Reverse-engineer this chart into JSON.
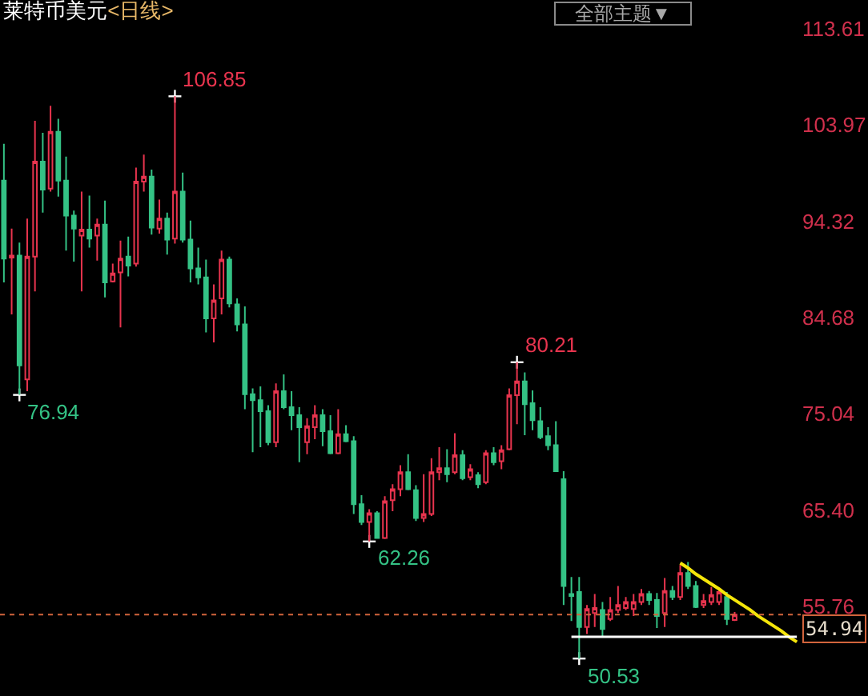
{
  "chart_data": {
    "type": "candlestick",
    "title": "莱特币美元",
    "subtitle": "<日线>",
    "categories": [
      null,
      null,
      null,
      null,
      null,
      null,
      null,
      null,
      null,
      null,
      null,
      null,
      null,
      null,
      null,
      null,
      null,
      null,
      null,
      null,
      null,
      null,
      null,
      null,
      null,
      null,
      null,
      null,
      null,
      null,
      null,
      null,
      null,
      null,
      null,
      null,
      null,
      null,
      null,
      null,
      null,
      null,
      null,
      null,
      null,
      null,
      null,
      null,
      null,
      null,
      null,
      null,
      null,
      null,
      null,
      null,
      null,
      null,
      null,
      null,
      null,
      null,
      null,
      null,
      null,
      null,
      null,
      null,
      null,
      null,
      null,
      null,
      null,
      null,
      null,
      null,
      null,
      null,
      null,
      null,
      null,
      null,
      null,
      null,
      null,
      null,
      null,
      null,
      null,
      null,
      null,
      null,
      null,
      null,
      null,
      null,
      null,
      null,
      null,
      null,
      null,
      null,
      null
    ],
    "ohlc": [
      [
        98.4,
        102.1,
        88.2,
        90.6
      ],
      [
        90.7,
        93.6,
        85.0,
        90.9
      ],
      [
        90.9,
        92.2,
        76.94,
        79.9
      ],
      [
        78.5,
        94.6,
        77.3,
        90.8
      ],
      [
        90.8,
        104.4,
        87.3,
        100.3
      ],
      [
        100.3,
        103.2,
        95.2,
        97.5
      ],
      [
        97.6,
        105.9,
        97.3,
        103.3
      ],
      [
        103.3,
        104.6,
        96.8,
        98.4
      ],
      [
        98.4,
        100.8,
        91.4,
        94.9
      ],
      [
        94.9,
        95.4,
        90.3,
        93.6
      ],
      [
        92.9,
        97.3,
        87.3,
        93.5
      ],
      [
        93.5,
        96.9,
        91.7,
        92.6
      ],
      [
        92.9,
        94.6,
        90.4,
        94.0
      ],
      [
        94.0,
        96.4,
        86.7,
        88.2
      ],
      [
        88.3,
        90.1,
        88.2,
        89.1
      ],
      [
        89.2,
        92.4,
        83.7,
        90.6
      ],
      [
        90.8,
        92.8,
        88.8,
        89.9
      ],
      [
        90.1,
        99.7,
        89.8,
        98.3
      ],
      [
        98.3,
        101.0,
        97.3,
        98.8
      ],
      [
        98.8,
        99.5,
        93.0,
        93.7
      ],
      [
        93.6,
        96.5,
        93.1,
        94.6
      ],
      [
        94.6,
        95.2,
        91.0,
        92.5
      ],
      [
        92.6,
        106.85,
        92.1,
        97.3
      ],
      [
        97.3,
        99.2,
        92.2,
        92.5
      ],
      [
        92.5,
        94.4,
        88.2,
        89.6
      ],
      [
        89.6,
        91.7,
        88.0,
        88.7
      ],
      [
        88.7,
        90.5,
        83.2,
        84.6
      ],
      [
        84.6,
        88.0,
        82.2,
        86.4
      ],
      [
        86.6,
        91.4,
        85.0,
        90.5
      ],
      [
        90.5,
        90.8,
        85.7,
        86.1
      ],
      [
        86.0,
        86.6,
        83.3,
        84.0
      ],
      [
        84.0,
        85.8,
        75.5,
        77.0
      ],
      [
        77.0,
        77.6,
        71.2,
        76.4
      ],
      [
        76.4,
        77.8,
        71.7,
        75.3
      ],
      [
        75.3,
        75.9,
        71.9,
        72.2
      ],
      [
        72.2,
        78.1,
        71.7,
        77.3
      ],
      [
        77.3,
        79.0,
        75.5,
        75.7
      ],
      [
        75.7,
        77.3,
        73.4,
        74.9
      ],
      [
        74.9,
        75.7,
        70.2,
        73.7
      ],
      [
        72.2,
        74.6,
        71.0,
        73.8
      ],
      [
        73.7,
        75.9,
        72.5,
        74.9
      ],
      [
        74.9,
        75.5,
        71.8,
        73.3
      ],
      [
        73.3,
        74.9,
        71.0,
        71.1
      ],
      [
        71.1,
        75.5,
        71.0,
        73.0
      ],
      [
        73.0,
        73.9,
        72.2,
        72.3
      ],
      [
        72.3,
        72.8,
        65.0,
        66.0
      ],
      [
        66.0,
        66.9,
        63.9,
        64.2
      ],
      [
        64.2,
        65.5,
        62.26,
        65.1
      ],
      [
        65.1,
        65.3,
        62.6,
        62.6
      ],
      [
        62.6,
        66.8,
        62.5,
        66.3
      ],
      [
        66.4,
        68.0,
        65.3,
        67.5
      ],
      [
        67.5,
        69.9,
        66.8,
        69.2
      ],
      [
        69.2,
        71.0,
        67.4,
        67.5
      ],
      [
        67.4,
        67.9,
        64.3,
        64.6
      ],
      [
        64.6,
        69.0,
        64.2,
        65.0
      ],
      [
        65.0,
        70.6,
        64.8,
        69.2
      ],
      [
        69.2,
        71.7,
        68.4,
        69.6
      ],
      [
        69.6,
        71.5,
        68.2,
        69.0
      ],
      [
        69.2,
        73.1,
        69.0,
        70.9
      ],
      [
        70.9,
        71.4,
        68.4,
        68.6
      ],
      [
        68.7,
        70.0,
        68.4,
        69.5
      ],
      [
        68.9,
        69.2,
        67.6,
        68.0
      ],
      [
        68.2,
        71.4,
        68.0,
        71.1
      ],
      [
        71.1,
        71.7,
        69.9,
        70.2
      ],
      [
        70.3,
        71.9,
        69.5,
        71.4
      ],
      [
        71.5,
        77.6,
        71.4,
        76.9
      ],
      [
        76.9,
        80.21,
        74.0,
        78.3
      ],
      [
        78.3,
        79.2,
        72.9,
        76.0
      ],
      [
        76.1,
        77.4,
        73.4,
        74.4
      ],
      [
        74.3,
        75.7,
        72.5,
        72.7
      ],
      [
        72.8,
        73.7,
        71.4,
        71.9
      ],
      [
        71.9,
        74.3,
        69.3,
        69.3
      ],
      [
        68.5,
        69.3,
        55.9,
        57.8
      ],
      [
        57.0,
        58.7,
        54.3,
        56.8
      ],
      [
        57.2,
        58.7,
        50.53,
        53.7
      ],
      [
        53.7,
        55.9,
        53.0,
        55.5
      ],
      [
        55.1,
        57.0,
        53.7,
        55.6
      ],
      [
        55.4,
        56.2,
        52.7,
        53.5
      ],
      [
        54.5,
        56.7,
        54.3,
        55.4
      ],
      [
        55.4,
        57.8,
        55.1,
        55.9
      ],
      [
        55.6,
        56.7,
        55.4,
        56.2
      ],
      [
        55.5,
        57.0,
        54.8,
        56.2
      ],
      [
        56.2,
        57.5,
        55.9,
        57.0
      ],
      [
        57.0,
        57.3,
        55.9,
        56.4
      ],
      [
        56.4,
        57.1,
        53.6,
        54.8
      ],
      [
        55.1,
        58.6,
        53.7,
        57.3
      ],
      [
        57.3,
        57.8,
        56.4,
        56.7
      ],
      [
        56.7,
        59.9,
        56.4,
        59.1
      ],
      [
        59.1,
        60.2,
        57.5,
        57.8
      ],
      [
        57.8,
        58.3,
        55.6,
        55.7
      ],
      [
        55.9,
        57.0,
        55.6,
        56.3
      ],
      [
        56.2,
        57.7,
        55.9,
        56.9
      ],
      [
        56.2,
        57.4,
        55.9,
        57.2
      ],
      [
        56.7,
        57.2,
        53.9,
        54.5
      ],
      [
        54.4,
        55.2,
        54.3,
        54.94
      ],
      null,
      null,
      null,
      null,
      null,
      null,
      null,
      null
    ],
    "value_labels": [
      null,
      null,
      "76.94",
      null,
      null,
      null,
      null,
      null,
      null,
      null,
      null,
      null,
      null,
      null,
      null,
      null,
      null,
      null,
      null,
      null,
      null,
      null,
      "106.85",
      null,
      null,
      null,
      null,
      null,
      null,
      null,
      null,
      null,
      null,
      null,
      null,
      null,
      null,
      null,
      null,
      null,
      null,
      null,
      null,
      null,
      null,
      null,
      null,
      "62.26",
      null,
      null,
      null,
      null,
      null,
      null,
      null,
      null,
      null,
      null,
      null,
      null,
      null,
      null,
      null,
      null,
      null,
      null,
      "80.21",
      null,
      null,
      null,
      null,
      null,
      null,
      null,
      "50.53",
      null,
      null,
      null,
      null,
      null,
      null,
      null,
      null,
      null,
      null,
      null,
      null,
      null,
      null,
      null,
      null,
      null,
      null,
      null,
      null,
      null,
      null,
      null,
      null,
      null,
      null,
      null,
      null
    ],
    "colors": [
      "#34c285",
      "#e8344e",
      "#34c285",
      "#e8344e",
      "#e8344e",
      "#34c285",
      "#e8344e",
      "#34c285",
      "#34c285",
      "#34c285",
      "#e8344e",
      "#34c285",
      "#e8344e",
      "#34c285",
      "#e8344e",
      "#e8344e",
      "#34c285",
      "#e8344e",
      "#e8344e",
      "#34c285",
      "#e8344e",
      "#34c285",
      "#e8344e",
      "#34c285",
      "#34c285",
      "#34c285",
      "#34c285",
      "#e8344e",
      "#e8344e",
      "#34c285",
      "#34c285",
      "#34c285",
      "#34c285",
      "#34c285",
      "#34c285",
      "#e8344e",
      "#34c285",
      "#34c285",
      "#34c285",
      "#e8344e",
      "#e8344e",
      "#34c285",
      "#34c285",
      "#e8344e",
      "#34c285",
      "#34c285",
      "#34c285",
      "#e8344e",
      "#34c285",
      "#e8344e",
      "#e8344e",
      "#e8344e",
      "#34c285",
      "#34c285",
      "#e8344e",
      "#e8344e",
      "#e8344e",
      "#34c285",
      "#e8344e",
      "#34c285",
      "#e8344e",
      "#34c285",
      "#e8344e",
      "#34c285",
      "#e8344e",
      "#e8344e",
      "#e8344e",
      "#34c285",
      "#34c285",
      "#34c285",
      "#34c285",
      "#34c285",
      "#34c285",
      "#34c285",
      "#34c285",
      "#e8344e",
      "#e8344e",
      "#34c285",
      "#e8344e",
      "#e8344e",
      "#e8344e",
      "#e8344e",
      "#e8344e",
      "#34c285",
      "#34c285",
      "#e8344e",
      "#34c285",
      "#e8344e",
      "#34c285",
      "#34c285",
      "#e8344e",
      "#e8344e",
      "#e8344e",
      "#34c285",
      "#e8344e",
      null,
      null,
      null,
      null,
      null,
      null,
      null,
      null
    ],
    "series": [
      {
        "type": "line",
        "color": "#f5e60a",
        "values": [
          null,
          null,
          null,
          null,
          null,
          null,
          null,
          null,
          null,
          null,
          null,
          null,
          null,
          null,
          null,
          null,
          null,
          null,
          null,
          null,
          null,
          null,
          null,
          null,
          null,
          null,
          null,
          null,
          null,
          null,
          null,
          null,
          null,
          null,
          null,
          null,
          null,
          null,
          null,
          null,
          null,
          null,
          null,
          null,
          null,
          null,
          null,
          null,
          null,
          null,
          null,
          null,
          null,
          null,
          null,
          null,
          null,
          null,
          null,
          null,
          null,
          null,
          null,
          null,
          null,
          null,
          null,
          null,
          null,
          null,
          null,
          null,
          null,
          null,
          null,
          null,
          null,
          null,
          null,
          null,
          null,
          null,
          null,
          null,
          null,
          null,
          null,
          60.1,
          59.6,
          59.0,
          58.5,
          58.0,
          57.5,
          56.9,
          56.4,
          55.9,
          55.4,
          54.8,
          54.3,
          53.8,
          53.3,
          52.7,
          52.2
        ]
      },
      {
        "type": "line",
        "color": "#ffffff",
        "values": [
          null,
          null,
          null,
          null,
          null,
          null,
          null,
          null,
          null,
          null,
          null,
          null,
          null,
          null,
          null,
          null,
          null,
          null,
          null,
          null,
          null,
          null,
          null,
          null,
          null,
          null,
          null,
          null,
          null,
          null,
          null,
          null,
          null,
          null,
          null,
          null,
          null,
          null,
          null,
          null,
          null,
          null,
          null,
          null,
          null,
          null,
          null,
          null,
          null,
          null,
          null,
          null,
          null,
          null,
          null,
          null,
          null,
          null,
          null,
          null,
          null,
          null,
          null,
          null,
          null,
          null,
          null,
          null,
          null,
          null,
          null,
          null,
          null,
          52.7,
          52.7,
          52.7,
          52.7,
          52.7,
          52.7,
          52.7,
          52.7,
          52.7,
          52.7,
          52.7,
          52.7,
          52.7,
          52.7,
          52.7,
          52.7,
          52.7,
          52.7,
          52.7,
          52.7,
          52.7,
          52.7,
          52.7,
          52.7,
          52.7,
          52.7,
          52.7,
          52.7,
          52.7,
          52.7
        ]
      }
    ],
    "ylim": [
      47.1,
      113.61
    ],
    "yticks": [
      55.76,
      {
        "value": 65.4,
        "label": "65.40"
      },
      75.04,
      84.68,
      94.32,
      103.97,
      113.61
    ],
    "tick_labels": "y",
    "ref_lines": [
      {
        "axis": "y",
        "value": 54.94,
        "label": "54.94",
        "color": "#d2643c",
        "line_style": "dashed"
      }
    ],
    "annotations": [
      "全部主题▼"
    ]
  }
}
